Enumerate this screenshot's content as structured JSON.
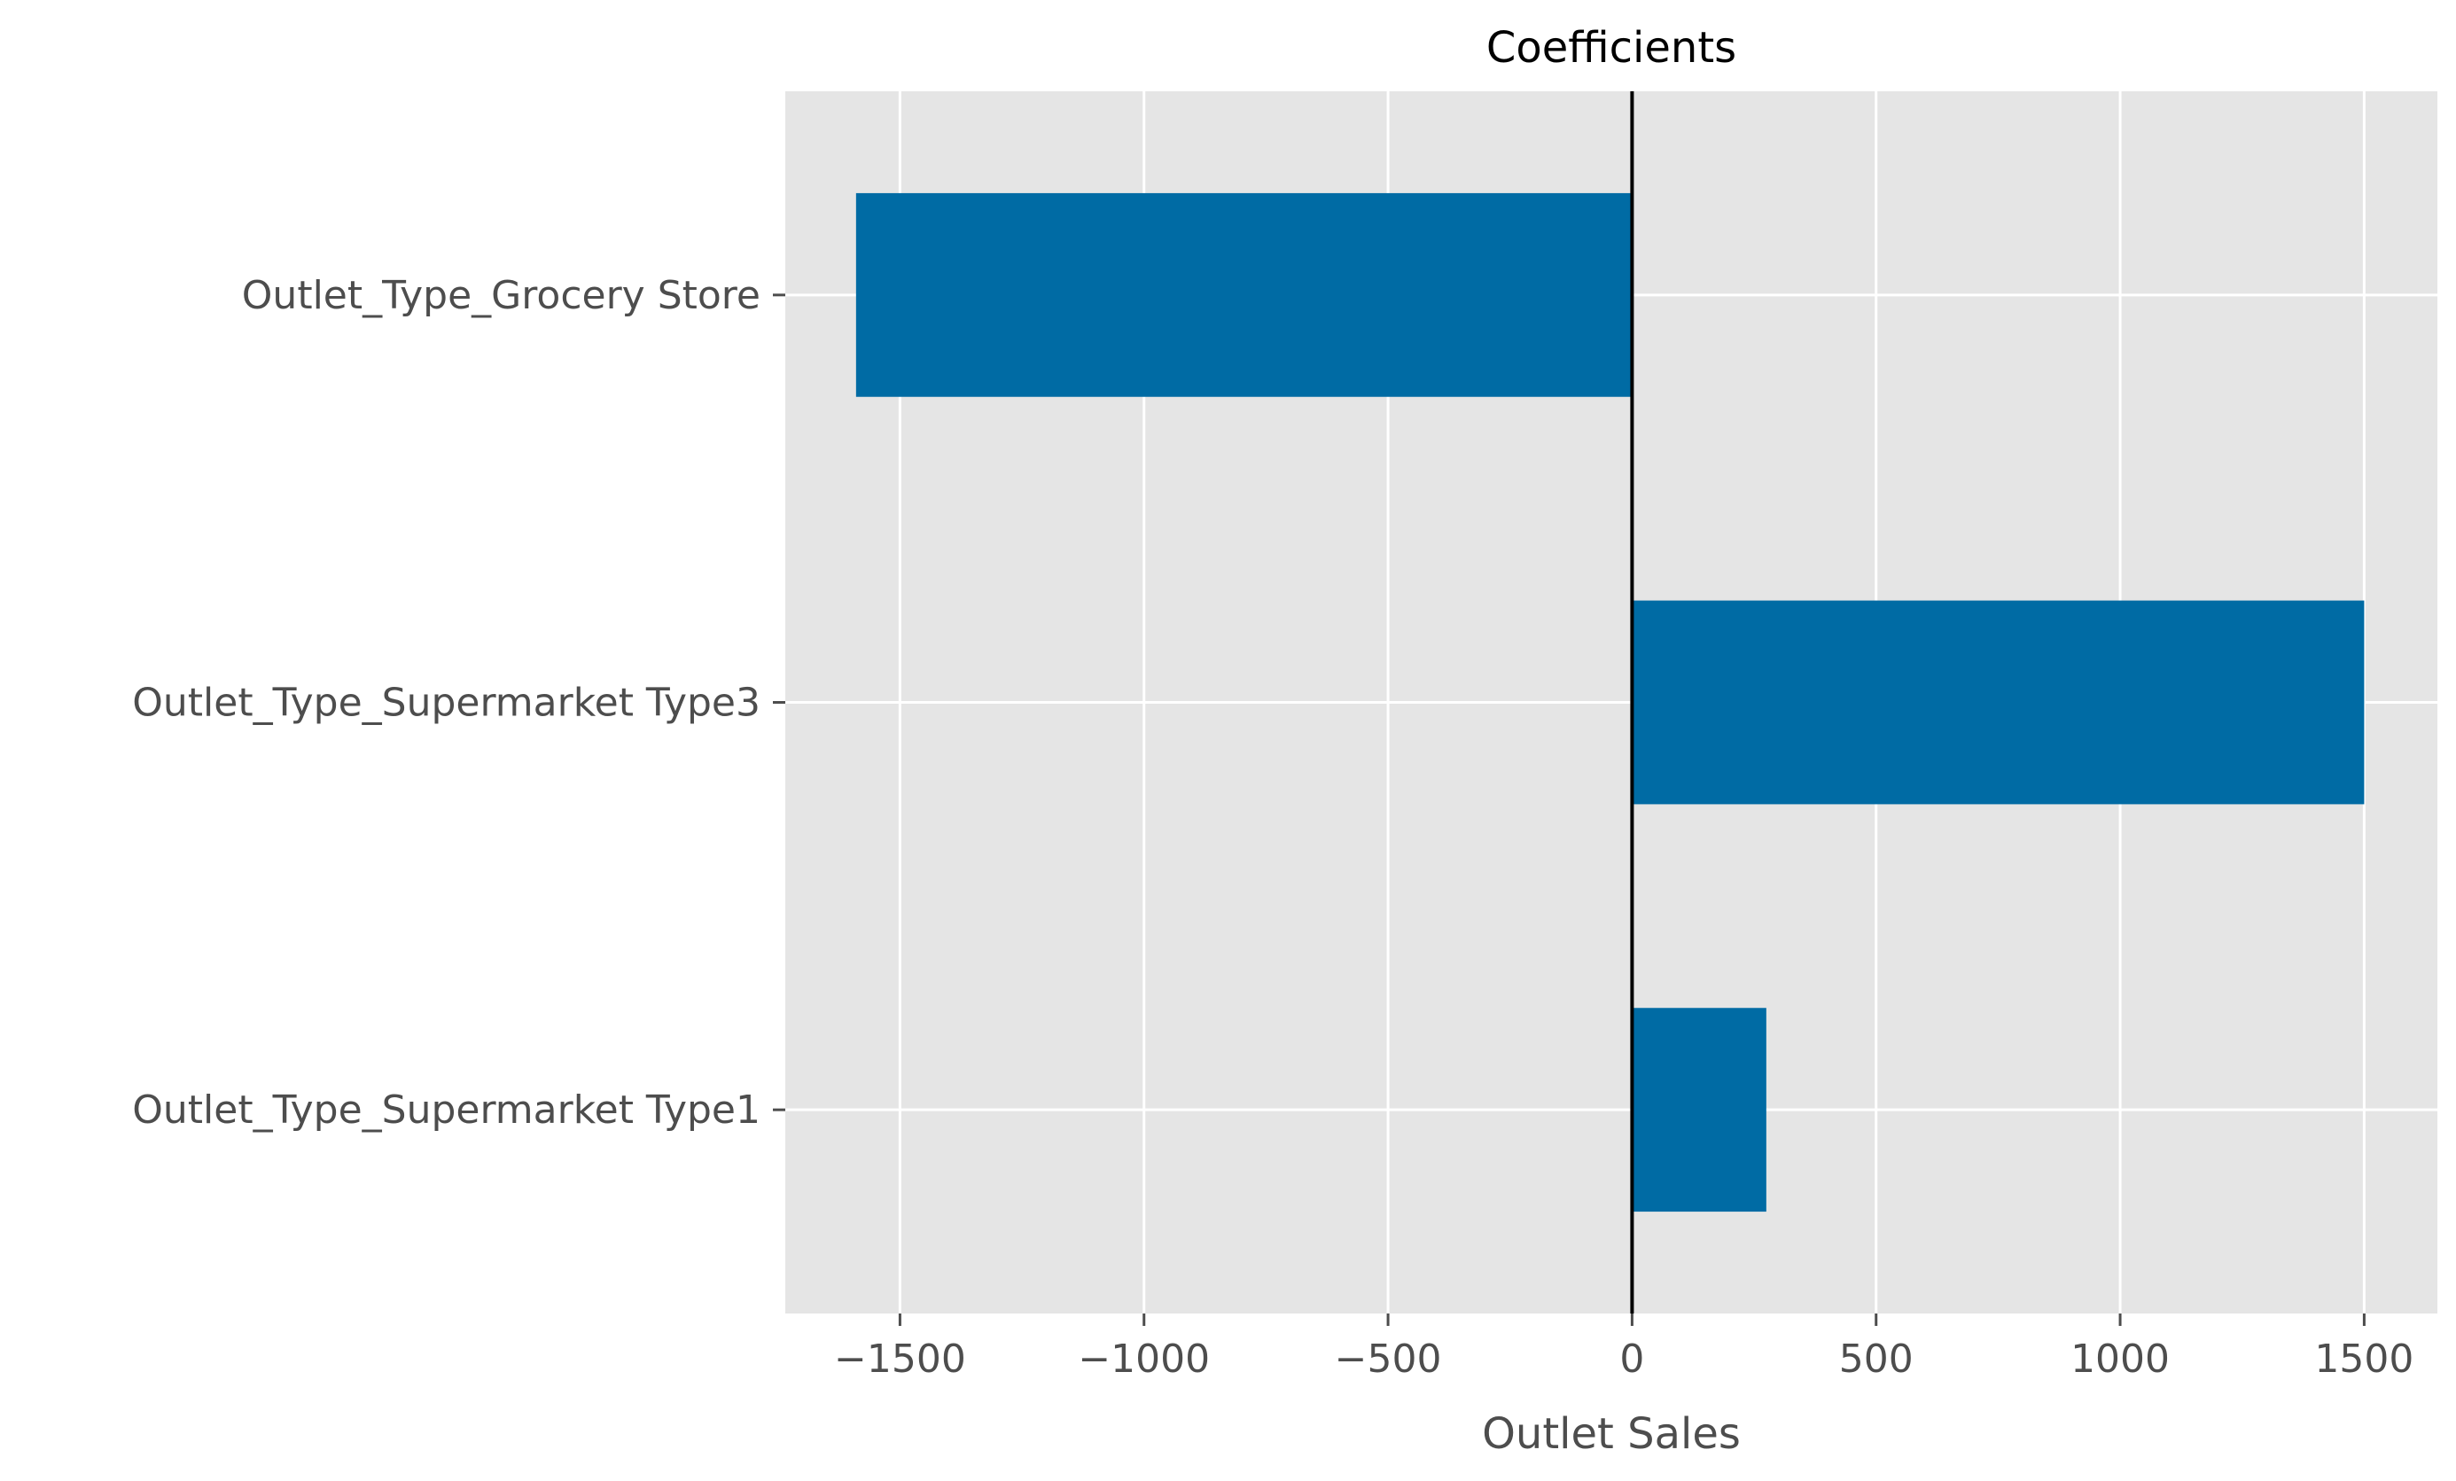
{
  "chart_data": {
    "type": "bar",
    "orientation": "horizontal",
    "title": "Coefficients",
    "xlabel": "Outlet Sales",
    "ylabel": "",
    "categories": [
      "Outlet_Type_Grocery Store",
      "Outlet_Type_Supermarket Type3",
      "Outlet_Type_Supermarket Type1"
    ],
    "values": [
      -1590,
      1500,
      275
    ],
    "xlim": [
      -1735,
      1650
    ],
    "xticks": [
      -1500,
      -1000,
      -500,
      0,
      500,
      1000,
      1500
    ],
    "xtick_labels": [
      "−1500",
      "−1000",
      "−500",
      "0",
      "500",
      "1000",
      "1500"
    ],
    "grid": true,
    "zero_line": true,
    "colors": {
      "bar": "#006ba4",
      "plot_background": "#e5e5e5",
      "grid": "#ffffff",
      "zero_line": "#000000",
      "tick_text": "#4d4d4d",
      "title_text": "#000000"
    }
  }
}
